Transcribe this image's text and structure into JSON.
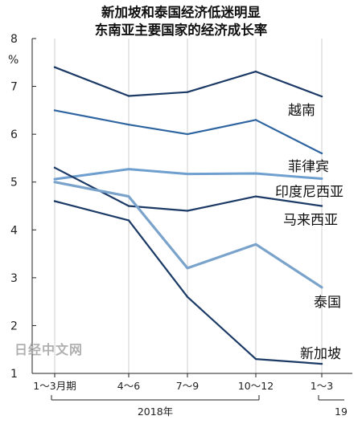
{
  "chart_data": {
    "type": "line",
    "title": [
      "新加坡和泰国经济低迷明显",
      "东南亚主要国家的经济成长率"
    ],
    "ylabel": "%",
    "ylim": [
      1,
      8
    ],
    "yticks": [
      1,
      2,
      3,
      4,
      5,
      6,
      7,
      8
    ],
    "categories": [
      "1～3月期",
      "4～6",
      "7～9",
      "10～12",
      "1～3"
    ],
    "year_groups": [
      {
        "label": "2018年",
        "start": 0,
        "end": 3
      },
      {
        "label": "19",
        "start": 4,
        "end": 4
      }
    ],
    "grid": "vertical",
    "series": [
      {
        "name": "越南",
        "color": "#1b3a66",
        "width": 2.2,
        "values": [
          7.4,
          6.8,
          6.88,
          7.31,
          6.79
        ]
      },
      {
        "name": "菲律宾",
        "color": "#2e64a0",
        "width": 2.2,
        "values": [
          6.5,
          6.2,
          6.0,
          6.3,
          5.6
        ]
      },
      {
        "name": "印度尼西亚",
        "color": "#6f9fcf",
        "width": 3.0,
        "values": [
          5.06,
          5.27,
          5.17,
          5.18,
          5.07
        ]
      },
      {
        "name": "马来西亚",
        "color": "#1b3a66",
        "width": 2.2,
        "values": [
          5.3,
          4.5,
          4.4,
          4.7,
          4.5
        ]
      },
      {
        "name": "泰国",
        "color": "#7aa3cc",
        "width": 3.2,
        "values": [
          5.0,
          4.7,
          3.2,
          3.7,
          2.8
        ]
      },
      {
        "name": "新加坡",
        "color": "#1b3a66",
        "width": 2.2,
        "values": [
          4.6,
          4.2,
          2.6,
          1.3,
          1.2
        ]
      }
    ]
  },
  "watermark": "日经中文网"
}
